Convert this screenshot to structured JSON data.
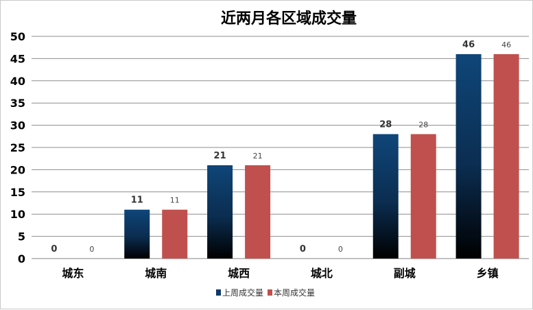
{
  "chart_data": {
    "type": "bar",
    "title": "近两月各区域成交量",
    "categories": [
      "城东",
      "城南",
      "城西",
      "城北",
      "副城",
      "乡镇"
    ],
    "series": [
      {
        "name": "上周成交量",
        "values": [
          0,
          11,
          21,
          0,
          28,
          46
        ],
        "color": "#0e3a66"
      },
      {
        "name": "本周成交量",
        "values": [
          0,
          11,
          21,
          0,
          28,
          46
        ],
        "color": "#c0504d"
      }
    ],
    "yticks": [
      0,
      5,
      10,
      15,
      20,
      25,
      30,
      35,
      40,
      45,
      50
    ],
    "ylim": [
      0,
      50
    ],
    "grid": true,
    "legend": "bottom"
  }
}
